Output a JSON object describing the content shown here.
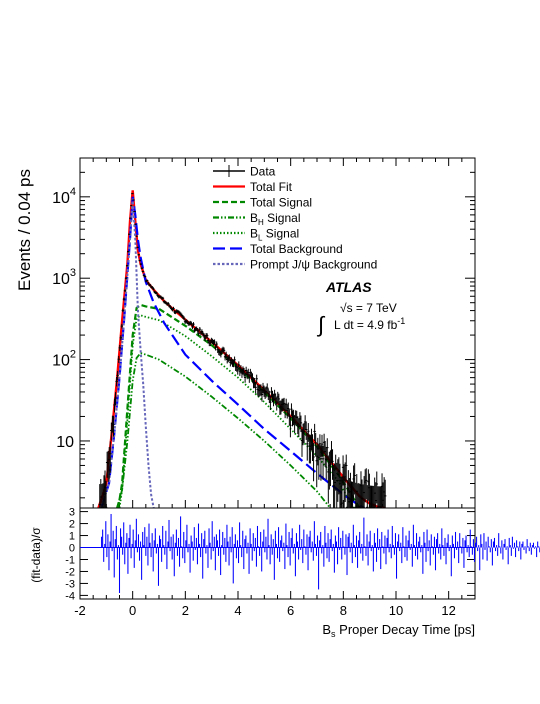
{
  "chart_data": [
    {
      "type": "line",
      "panel": "main",
      "ylabel": "Events / 0.04 ps",
      "yscale": "log",
      "xlim": [
        -2,
        13
      ],
      "ylim": [
        1.5,
        30000
      ],
      "y_ticks": [
        {
          "value": 10,
          "mantissa": "10",
          "exp": ""
        },
        {
          "value": 100,
          "mantissa": "10",
          "exp": "2"
        },
        {
          "value": 1000,
          "mantissa": "10",
          "exp": "3"
        },
        {
          "value": 10000,
          "mantissa": "10",
          "exp": "4"
        }
      ],
      "annotation": {
        "experiment": "ATLAS",
        "energy": "√s = 7 TeV",
        "lumi_prefix": "L dt = 4.9 fb",
        "lumi_exp": "-1",
        "integral_sign": "∫"
      },
      "legend_position": "top-right",
      "legend": [
        {
          "label": "Data",
          "sub": "",
          "tail": "",
          "color": "#000000",
          "dash": "",
          "style": "errorbar"
        },
        {
          "label": "Total Fit",
          "sub": "",
          "tail": "",
          "color": "#ff0000",
          "dash": "",
          "style": "line"
        },
        {
          "label": "Total Signal",
          "sub": "",
          "tail": "",
          "color": "#008800",
          "dash": "6,3",
          "style": "line"
        },
        {
          "label": "B",
          "sub": "H",
          "tail": " Signal",
          "color": "#008800",
          "dash": "6,2,1.5,2,1.5,2",
          "style": "line"
        },
        {
          "label": "B",
          "sub": "L",
          "tail": " Signal",
          "color": "#008800",
          "dash": "1.5,2",
          "style": "line"
        },
        {
          "label": "Total Background",
          "sub": "",
          "tail": "",
          "color": "#0000ff",
          "dash": "12,5",
          "style": "line"
        },
        {
          "label": "Prompt J/ψ Background",
          "sub": "",
          "tail": "",
          "color": "#6666bb",
          "dash": "2.5,2",
          "style": "line"
        }
      ],
      "series": [
        {
          "name": "Total Fit",
          "color": "#ff0000",
          "dash": "",
          "width": 2.4,
          "x": [
            -1.3,
            -1.0,
            -0.8,
            -0.6,
            -0.4,
            -0.2,
            -0.1,
            0.0,
            0.1,
            0.2,
            0.3,
            0.5,
            0.8,
            1.2,
            1.6,
            2.0,
            3.0,
            4.0,
            5.0,
            6.0,
            7.0,
            8.0,
            8.6,
            9.0,
            9.3,
            9.6
          ],
          "y": [
            1.5,
            3,
            12,
            55,
            300,
            1500,
            5000,
            12000,
            5000,
            2200,
            1500,
            950,
            720,
            520,
            400,
            310,
            165,
            85,
            42,
            20,
            9,
            3.6,
            2.1,
            1.7,
            1.55,
            1.5
          ]
        },
        {
          "name": "Total Signal",
          "color": "#008800",
          "dash": "6,3",
          "width": 2.2,
          "x": [
            -0.55,
            -0.4,
            -0.2,
            0.0,
            0.15,
            0.3,
            0.5,
            1.0,
            2.0,
            3.0,
            4.0,
            5.0,
            6.0,
            7.0,
            7.9,
            8.3,
            8.6
          ],
          "y": [
            1.5,
            3,
            25,
            200,
            430,
            470,
            450,
            420,
            260,
            150,
            80,
            40,
            19,
            8.5,
            3.5,
            2.2,
            1.5
          ]
        },
        {
          "name": "B_H Signal",
          "color": "#008800",
          "dash": "6,2,1.5,2,1.5,2",
          "width": 1.8,
          "x": [
            -0.6,
            -0.4,
            -0.2,
            0.0,
            0.15,
            0.3,
            0.5,
            1.0,
            2.0,
            3.0,
            4.0,
            5.0,
            6.0,
            7.0,
            7.5
          ],
          "y": [
            1.5,
            2.5,
            10,
            55,
            105,
            120,
            115,
            100,
            62,
            35,
            19,
            10,
            5,
            2.4,
            1.5
          ]
        },
        {
          "name": "B_L Signal",
          "color": "#008800",
          "dash": "1.5,2",
          "width": 1.8,
          "x": [
            -0.5,
            -0.4,
            -0.2,
            0.0,
            0.15,
            0.3,
            0.5,
            1.0,
            2.0,
            3.0,
            4.0,
            5.0,
            6.0,
            7.0,
            7.8,
            8.4
          ],
          "y": [
            1.5,
            2.5,
            18,
            150,
            320,
            350,
            335,
            305,
            195,
            110,
            60,
            30,
            14,
            6.5,
            3.2,
            1.5
          ]
        },
        {
          "name": "Total Background",
          "color": "#0000ff",
          "dash": "12,5",
          "width": 2.2,
          "x": [
            -1.2,
            -0.9,
            -0.7,
            -0.5,
            -0.3,
            -0.1,
            0.0,
            0.1,
            0.2,
            0.3,
            0.5,
            0.8,
            1.2,
            2.0,
            3.0,
            4.0,
            5.0,
            6.0,
            7.0,
            8.0,
            8.5,
            8.8
          ],
          "y": [
            1.5,
            3,
            12,
            60,
            400,
            3000,
            10000,
            6000,
            3000,
            1800,
            900,
            500,
            280,
            115,
            55,
            28,
            14,
            7.5,
            4,
            2.2,
            1.7,
            1.5
          ]
        },
        {
          "name": "Prompt J/ψ Background",
          "color": "#6666bb",
          "dash": "2.5,2",
          "width": 2.0,
          "x": [
            -1.2,
            -0.9,
            -0.7,
            -0.5,
            -0.3,
            -0.1,
            0.0,
            0.1,
            0.2,
            0.3,
            0.4,
            0.5,
            0.6,
            0.7,
            0.8
          ],
          "y": [
            1.5,
            3,
            12,
            60,
            400,
            3000,
            9500,
            3000,
            400,
            130,
            50,
            15,
            5,
            2.2,
            1.5
          ]
        }
      ]
    },
    {
      "type": "bar",
      "panel": "pull",
      "xlabel_main": "B",
      "xlabel_sub": "s",
      "xlabel_tail": " Proper Decay Time [ps]",
      "ylabel": "(fit-data)/σ",
      "xlim": [
        -2,
        13
      ],
      "ylim": [
        -4.3,
        3.3
      ],
      "x_ticks": [
        "-2",
        "0",
        "2",
        "4",
        "6",
        "8",
        "10",
        "12"
      ],
      "y_ticks": [
        "-4",
        "-3",
        "-2",
        "-1",
        "0",
        "1",
        "2",
        "3"
      ],
      "color": "#0000ff",
      "bin_start": -1.2,
      "bin_width": 0.04,
      "values": [
        0.9,
        1.5,
        -1.2,
        0.3,
        2.2,
        -0.8,
        1.1,
        -1.9,
        0.5,
        2.8,
        -0.3,
        1.4,
        -2.5,
        0.7,
        1.8,
        -1.0,
        0.2,
        -3.8,
        1.6,
        0.9,
        -0.6,
        2.1,
        -1.4,
        0.4,
        1.2,
        -2.2,
        0.8,
        1.9,
        -0.9,
        0.3,
        1.5,
        -1.7,
        0.6,
        2.4,
        -0.4,
        1.1,
        -1.1,
        0.5,
        -2.7,
        1.3,
        0.2,
        1.7,
        -0.7,
        0.9,
        -1.5,
        2.0,
        0.4,
        -0.8,
        1.2,
        -2.0,
        0.6,
        1.6,
        -0.5,
        0.3,
        -3.2,
        1.0,
        0.7,
        -1.2,
        1.8,
        0.2,
        -0.6,
        1.4,
        -1.8,
        0.5,
        2.3,
        -0.3,
        0.9,
        -1.0,
        1.1,
        -2.4,
        0.4,
        1.5,
        -0.7,
        0.8,
        -1.6,
        2.6,
        0.1,
        -0.9,
        1.3,
        -1.3,
        0.6,
        1.9,
        -0.4,
        0.3,
        -2.1,
        1.0,
        0.5,
        -1.1,
        1.7,
        -0.2,
        0.8,
        -1.4,
        2.0,
        0.3,
        -0.8,
        1.2,
        -2.6,
        0.7,
        1.4,
        -0.5,
        0.2,
        -1.7,
        1.6,
        0.4,
        -1.0,
        2.2,
        -0.3,
        0.9,
        -1.9,
        1.1,
        0.6,
        -0.7,
        1.5,
        -2.3,
        0.2,
        1.3,
        -0.6,
        0.8,
        -1.2,
        1.9,
        0.5,
        -1.5,
        0.9,
        -0.4,
        1.7,
        -3.0,
        0.3,
        1.1,
        -0.9,
        0.6,
        -1.3,
        2.1,
        0.2,
        -0.8,
        1.4,
        -1.8,
        0.7,
        1.0,
        -0.5,
        0.4,
        -2.2,
        1.6,
        0.3,
        -1.1,
        1.2,
        -0.3,
        0.8,
        -1.6,
        1.8,
        0.1,
        -0.7,
        1.3,
        -2.0,
        0.5,
        1.5,
        -0.4,
        0.9,
        -1.0,
        2.4,
        0.2,
        -1.4,
        1.1,
        -0.6,
        0.7,
        -2.7,
        1.4,
        0.3,
        -0.9,
        1.7,
        -1.2,
        0.6,
        1.0,
        -0.3,
        0.4,
        -1.8,
        2.0,
        0.2,
        -0.8,
        1.3,
        -1.5,
        0.8,
        1.6,
        -0.5,
        0.3,
        -2.4,
        1.2,
        0.5,
        -1.0,
        1.9,
        -0.2,
        0.7,
        -1.3,
        1.5,
        0.1,
        -0.6,
        1.1,
        -1.9,
        0.9,
        1.4,
        -0.4,
        0.5,
        -1.1,
        2.2,
        0.3,
        -0.7,
        1.0,
        -3.5,
        0.6,
        1.3,
        -0.5,
        0.2,
        -1.6,
        1.8,
        0.4,
        -0.9,
        1.2,
        -1.2,
        0.7,
        1.5,
        -0.3,
        0.3,
        -2.1,
        1.0,
        0.5,
        -1.4,
        1.7,
        -0.2,
        0.8,
        -1.0,
        1.4,
        0.1,
        -0.6,
        1.1,
        -2.3,
        0.9,
        1.2,
        -0.4,
        0.4,
        -1.3,
        1.9,
        0.2,
        -0.8,
        1.0,
        -1.7,
        0.6,
        1.3,
        -0.5,
        0.3,
        -1.1,
        2.5,
        0.1,
        -0.7,
        1.1,
        -1.5,
        0.5,
        1.4,
        -0.3,
        0.2,
        -2.0,
        1.2,
        0.4,
        -1.2,
        1.6,
        -0.2,
        0.7,
        -1.8,
        1.3,
        0.1,
        -0.5,
        1.0,
        -1.4,
        0.8,
        1.5,
        -0.4,
        0.3,
        -0.9,
        1.8,
        0.2,
        -0.6,
        1.2,
        -2.6,
        0.5,
        1.1,
        -0.3,
        0.4,
        -1.3,
        1.7,
        0.1,
        -0.8,
        1.0,
        -1.1,
        0.6,
        1.4,
        -0.2,
        0.3,
        -1.6,
        1.9,
        0.2,
        -0.7,
        1.2,
        -1.0,
        0.5,
        0.9,
        -0.4,
        0.2,
        -2.2,
        1.3,
        0.4,
        -1.2,
        1.5,
        -0.3,
        0.6,
        -1.5,
        1.1,
        0.1,
        -0.6,
        0.9,
        -1.9,
        0.7,
        1.2,
        -0.5,
        0.3,
        -1.0,
        1.6,
        0.2,
        -0.7,
        0.8,
        -1.4,
        0.4,
        1.1,
        -0.3,
        0.2,
        -2.4,
        1.0,
        0.3,
        -0.9,
        1.3,
        -0.2,
        0.5,
        -1.3,
        1.2,
        0.1,
        -0.5,
        0.8,
        -1.7,
        0.6,
        1.0,
        -0.4,
        0.2,
        -0.8,
        1.5,
        0.1,
        -0.6,
        0.7,
        -1.2,
        0.4,
        0.9,
        -0.3,
        0.2,
        -1.9,
        1.1,
        0.3,
        -1.0,
        1.2,
        -0.2,
        0.5,
        -1.1,
        0.9,
        0.1,
        -0.4,
        0.7,
        -1.5,
        0.5,
        0.8,
        -0.3,
        0.2,
        -0.7,
        1.2,
        0.1,
        -0.5,
        0.6,
        -1.0,
        0.3,
        0.7,
        -0.2,
        0.1,
        -1.4,
        0.8,
        0.2,
        -0.7,
        0.9,
        -0.1,
        0.4,
        -0.8,
        0.6,
        0.1,
        -0.3,
        0.5,
        -1.0,
        0.3,
        0.5,
        -0.2,
        0.1,
        -0.5,
        0.7,
        0.1,
        -0.3,
        0.4,
        -0.6,
        0.2,
        0.4,
        -0.1,
        0.1,
        -0.8,
        0.5,
        0.1,
        -0.4,
        0.5,
        -0.1,
        0.2,
        -0.4,
        0.3,
        0.1,
        -0.2,
        0.3,
        -0.5,
        0.2,
        0.3,
        -0.1,
        0.1,
        -0.3,
        0.4,
        0.1,
        -0.2,
        0.2,
        -0.3,
        0.1,
        0.2,
        0,
        0.1,
        -0.2,
        0.2,
        0.1,
        -0.1,
        0.15,
        0,
        0.1,
        -0.1,
        0.1,
        0,
        0,
        0.1
      ]
    }
  ]
}
